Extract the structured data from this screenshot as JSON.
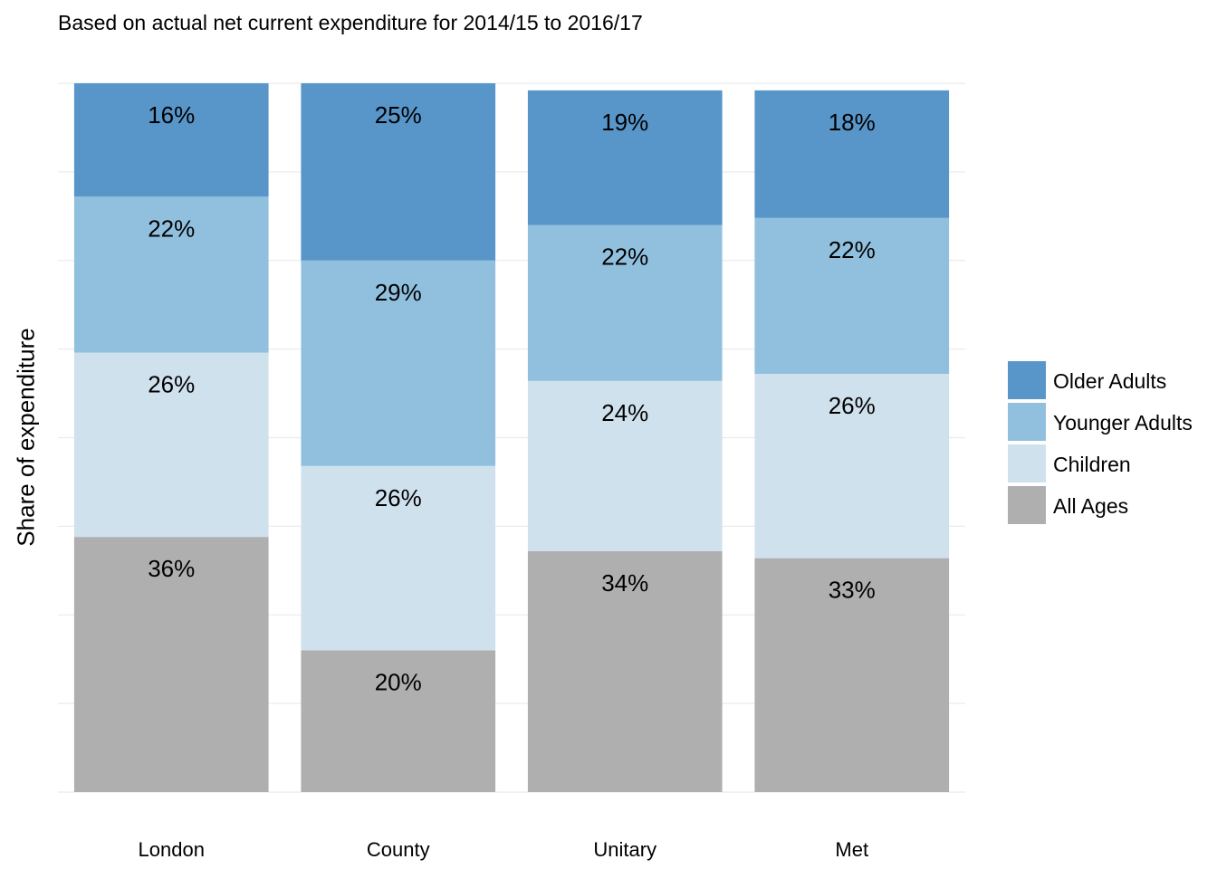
{
  "chart_data": {
    "type": "bar",
    "stacked": true,
    "subtitle": "Based on actual net current expenditure for 2014/15 to 2016/17",
    "title": "",
    "xlabel": "",
    "ylabel": "Share of expenditure",
    "ylim": [
      0,
      100
    ],
    "grid": true,
    "legend_position": "right",
    "categories": [
      "London",
      "County",
      "Unitary",
      "Met"
    ],
    "series": [
      {
        "name": "All Ages",
        "color": "#AFAFAF",
        "values": [
          36,
          20,
          34,
          33
        ]
      },
      {
        "name": "Children",
        "color": "#D0E1EE",
        "values": [
          26,
          26,
          24,
          26
        ]
      },
      {
        "name": "Younger Adults",
        "color": "#91C0DF",
        "values": [
          22,
          29,
          22,
          22
        ]
      },
      {
        "name": "Older Adults",
        "color": "#5895C9",
        "values": [
          16,
          25,
          19,
          18
        ]
      }
    ],
    "legend_order": [
      "Older Adults",
      "Younger Adults",
      "Children",
      "All Ages"
    ]
  }
}
